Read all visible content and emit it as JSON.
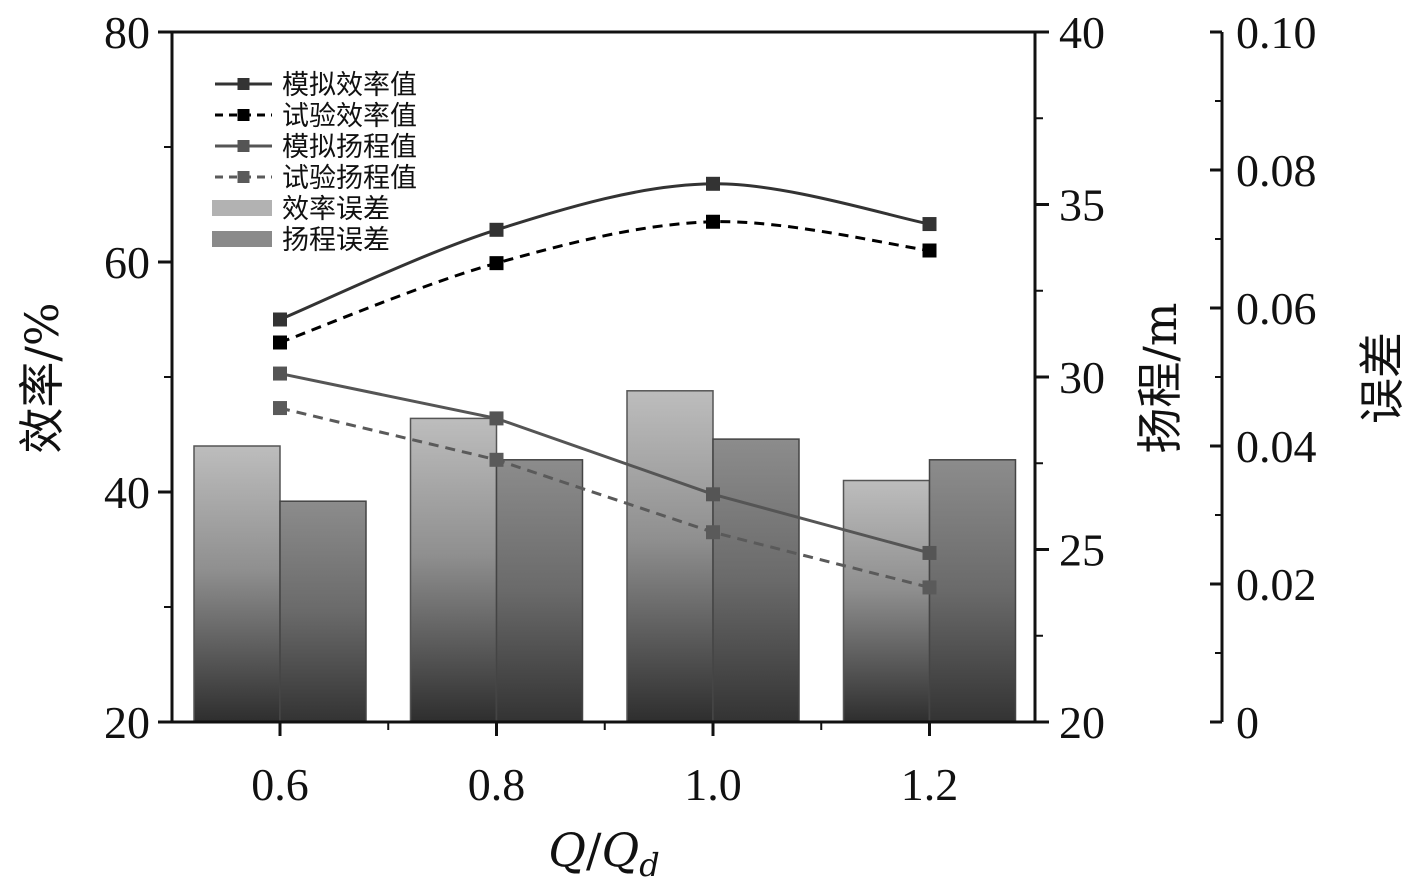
{
  "chart_data": {
    "type": "bar+line",
    "categories": [
      "0.6",
      "0.8",
      "1.0",
      "1.2"
    ],
    "x": [
      0.6,
      0.8,
      1.0,
      1.2
    ],
    "xlabel": {
      "italic1": "Q",
      "slash": "/",
      "italic2": "Q",
      "sub": "d"
    },
    "y_left": {
      "label": "效率/%",
      "ylim": [
        20,
        80
      ],
      "ticks": [
        "20",
        "40",
        "60",
        "80"
      ]
    },
    "y_right1": {
      "label": "扬程/m",
      "ylim": [
        20,
        40
      ],
      "ticks": [
        "20",
        "25",
        "30",
        "35",
        "40"
      ]
    },
    "y_right2": {
      "label": "误差",
      "ylim": [
        0,
        0.1
      ],
      "ticks": [
        "0",
        "0.02",
        "0.04",
        "0.06",
        "0.08",
        "0.10"
      ]
    },
    "series": [
      {
        "name": "模拟效率值",
        "axis": "left",
        "kind": "line",
        "style": "solid",
        "values": [
          55.0,
          62.8,
          66.8,
          63.3
        ]
      },
      {
        "name": "试验效率值",
        "axis": "left",
        "kind": "line",
        "style": "dashed",
        "values": [
          53.0,
          59.9,
          63.5,
          61.0
        ]
      },
      {
        "name": "模拟扬程值",
        "axis": "right1",
        "kind": "line",
        "style": "solid",
        "values": [
          30.1,
          28.8,
          26.6,
          24.9
        ]
      },
      {
        "name": "试验扬程值",
        "axis": "right1",
        "kind": "line",
        "style": "dashed",
        "values": [
          29.1,
          27.6,
          25.5,
          23.9
        ]
      },
      {
        "name": "效率误差",
        "axis": "right2",
        "kind": "bar",
        "values": [
          0.04,
          0.044,
          0.048,
          0.035
        ]
      },
      {
        "name": "扬程误差",
        "axis": "right2",
        "kind": "bar",
        "values": [
          0.032,
          0.038,
          0.041,
          0.038
        ]
      }
    ],
    "colors": {
      "sim_eff": "#333333",
      "exp_eff": "#000000",
      "sim_head": "#555555",
      "exp_head": "#5a5a5a",
      "bar_eff_top": "#b8b8b8",
      "bar_eff_bottom": "#303030",
      "bar_head_top": "#8e8e8e",
      "bar_head_bottom": "#333333"
    }
  }
}
